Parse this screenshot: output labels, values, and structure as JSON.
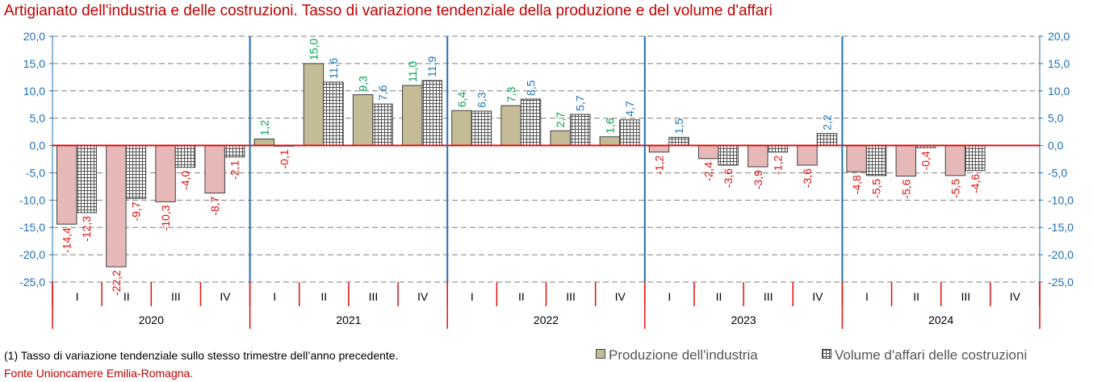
{
  "title": "Artigianato dell'industria e delle costruzioni. Tasso di variazione tendenziale della produzione e del volume d'affari",
  "note": "(1) Tasso di variazione tendenziale sullo stesso trimestre dell’anno precedente.",
  "source": "Fonte Unioncamere Emilia-Romagna.",
  "legend": {
    "prod": "Produzione dell'industria",
    "vol": "Volume d'affari delle costruzioni"
  },
  "colors": {
    "production_positive": "#c4bc96",
    "production_negative": "#e6b9b8",
    "volume_fill": "#ffffff",
    "positive_label_production": "#00a651",
    "positive_label_volume": "#1f77b4",
    "negative_label": "#e01010",
    "axis_red": "#e01010",
    "axis_blue": "#1f6fb5",
    "grid": "#808080"
  },
  "chart_data": {
    "type": "bar",
    "title": "Artigianato dell'industria e delle costruzioni. Tasso di variazione tendenziale della produzione e del volume d'affari",
    "years": [
      "2020",
      "2021",
      "2022",
      "2023",
      "2024"
    ],
    "quarters": [
      "I",
      "II",
      "III",
      "IV"
    ],
    "categories": [
      "2020 I",
      "2020 II",
      "2020 III",
      "2020 IV",
      "2021 I",
      "2021 II",
      "2021 III",
      "2021 IV",
      "2022 I",
      "2022 II",
      "2022 III",
      "2022 IV",
      "2023 I",
      "2023 II",
      "2023 III",
      "2023 IV",
      "2024 I",
      "2024 II",
      "2024 III",
      "2024 IV"
    ],
    "series": [
      {
        "name": "Produzione dell'industria",
        "values": [
          -14.4,
          -22.2,
          -10.3,
          -8.7,
          1.2,
          15.0,
          9.3,
          11.0,
          6.4,
          7.3,
          2.7,
          1.6,
          -1.2,
          -2.4,
          -3.9,
          -3.6,
          -4.8,
          -5.6,
          -5.5,
          null
        ],
        "labels": [
          "-14,4",
          "-22,2",
          "-10,3",
          "-8,7",
          "1,2",
          "15,0",
          "9,3",
          "11,0",
          "6,4",
          "7,3",
          "2,7",
          "1,6",
          "-1,2",
          "-2,4",
          "-3,9",
          "-3,6",
          "-4,8",
          "-5,6",
          "-5,5",
          ""
        ]
      },
      {
        "name": "Volume d'affari delle costruzioni",
        "values": [
          -12.3,
          -9.7,
          -4.0,
          -2.1,
          -0.1,
          11.6,
          7.6,
          11.9,
          6.3,
          8.5,
          5.7,
          4.7,
          1.5,
          -3.6,
          -1.2,
          2.2,
          -5.5,
          -0.4,
          -4.6,
          null
        ],
        "labels": [
          "-12,3",
          "-9,7",
          "-4,0",
          "-2,1",
          "-0,1",
          "11,6",
          "7,6",
          "11,9",
          "6,3",
          "8,5",
          "5,7",
          "4,7",
          "1,5",
          "-3,6",
          "-1,2",
          "2,2",
          "-5,5",
          "-0,4",
          "-4,6",
          ""
        ]
      }
    ],
    "ylim": [
      -25,
      20
    ],
    "yticks": [
      20,
      15,
      10,
      5,
      0,
      -5,
      -10,
      -15,
      -20,
      -25
    ],
    "ytick_labels": [
      "20,0",
      "15,0",
      "10,0",
      "5,0",
      "0,0",
      "-5,0",
      "-10,0",
      "-15,0",
      "-20,0",
      "-25,0"
    ],
    "grid": true,
    "legend_position": "bottom-right"
  }
}
